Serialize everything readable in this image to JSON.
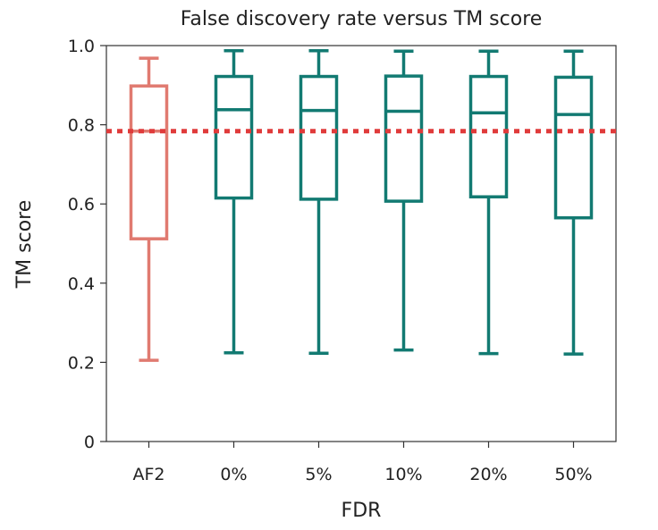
{
  "chart_data": {
    "type": "box",
    "title": "False discovery rate versus TM score",
    "xlabel": "FDR",
    "ylabel": "TM score",
    "ylim": [
      0,
      1
    ],
    "yticks": [
      0,
      0.2,
      0.4,
      0.6,
      0.8,
      1.0
    ],
    "ytick_labels": [
      "0",
      "0.2",
      "0.4",
      "0.6",
      "0.8",
      "1.0"
    ],
    "categories": [
      "AF2",
      "0%",
      "5%",
      "10%",
      "20%",
      "50%"
    ],
    "boxes": [
      {
        "category": "AF2",
        "whisker_low": 0.205,
        "q1": 0.512,
        "median": 0.784,
        "q3": 0.898,
        "whisker_high": 0.968,
        "color": "#e07a70"
      },
      {
        "category": "0%",
        "whisker_low": 0.224,
        "q1": 0.615,
        "median": 0.838,
        "q3": 0.922,
        "whisker_high": 0.987,
        "color": "#127a72"
      },
      {
        "category": "5%",
        "whisker_low": 0.223,
        "q1": 0.612,
        "median": 0.836,
        "q3": 0.922,
        "whisker_high": 0.987,
        "color": "#127a72"
      },
      {
        "category": "10%",
        "whisker_low": 0.231,
        "q1": 0.607,
        "median": 0.834,
        "q3": 0.923,
        "whisker_high": 0.986,
        "color": "#127a72"
      },
      {
        "category": "20%",
        "whisker_low": 0.222,
        "q1": 0.618,
        "median": 0.83,
        "q3": 0.922,
        "whisker_high": 0.986,
        "color": "#127a72"
      },
      {
        "category": "50%",
        "whisker_low": 0.221,
        "q1": 0.565,
        "median": 0.826,
        "q3": 0.92,
        "whisker_high": 0.986,
        "color": "#127a72"
      }
    ],
    "reference_line": {
      "y": 0.784,
      "style": "dotted",
      "color": "#e03b3b"
    },
    "grid": false,
    "legend": "none"
  }
}
